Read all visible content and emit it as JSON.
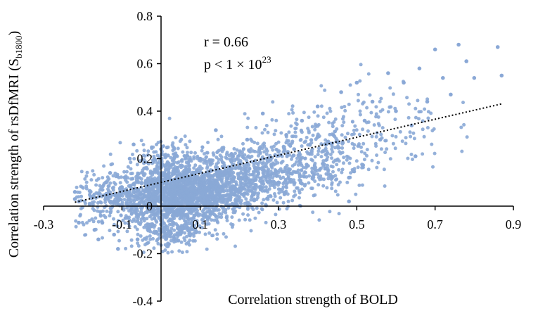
{
  "chart_data": {
    "type": "scatter",
    "title": "",
    "xlabel": "Correlation strength of BOLD",
    "ylabel_main": "Correlation strength of rsDfMRI (S",
    "ylabel_sub": "b1800",
    "ylabel_close": ")",
    "xlim": [
      -0.3,
      0.9
    ],
    "ylim": [
      -0.4,
      0.8
    ],
    "x_ticks": [
      -0.3,
      -0.1,
      0.1,
      0.3,
      0.5,
      0.7,
      0.9
    ],
    "x_tick_labels": [
      "-0.3",
      "-0.1",
      "0.1",
      "0.3",
      "0.5",
      "0.7",
      "0.9"
    ],
    "y_ticks": [
      -0.4,
      -0.2,
      0,
      0.2,
      0.4,
      0.6,
      0.8
    ],
    "y_tick_labels": [
      "-0.4",
      "-0.2",
      "0",
      "0.2",
      "0.4",
      "0.6",
      "0.8"
    ],
    "annotation_r": "r = 0.66",
    "annotation_p_main": "p < 1 × 10",
    "annotation_p_exp": "23",
    "point_color": "#8aa8d6",
    "trendline": {
      "slope": 0.38,
      "intercept": 0.1,
      "x_range": [
        -0.22,
        0.87
      ],
      "style": "dotted",
      "color": "#000000"
    },
    "representative_points": [
      [
        -0.22,
        0.06
      ],
      [
        -0.22,
        0.03
      ],
      [
        -0.21,
        0.02
      ],
      [
        -0.21,
        -0.07
      ],
      [
        -0.18,
        0.04
      ],
      [
        -0.17,
        -0.1
      ],
      [
        -0.16,
        -0.14
      ],
      [
        -0.15,
        -0.07
      ],
      [
        -0.14,
        0.1
      ],
      [
        -0.13,
        0.14
      ],
      [
        -0.12,
        -0.12
      ],
      [
        -0.12,
        0.02
      ],
      [
        -0.11,
        -0.18
      ],
      [
        -0.1,
        0.08
      ],
      [
        -0.09,
        -0.05
      ],
      [
        -0.08,
        0.2
      ],
      [
        -0.07,
        0.26
      ],
      [
        -0.06,
        -0.14
      ],
      [
        -0.04,
        0.16
      ],
      [
        -0.03,
        -0.1
      ],
      [
        0.0,
        0.24
      ],
      [
        0.02,
        -0.16
      ],
      [
        0.04,
        0.12
      ],
      [
        0.06,
        0.08
      ],
      [
        0.08,
        -0.08
      ],
      [
        0.1,
        0.2
      ],
      [
        0.12,
        0.04
      ],
      [
        0.14,
        0.32
      ],
      [
        0.16,
        0.14
      ],
      [
        0.18,
        0.22
      ],
      [
        0.2,
        0.06
      ],
      [
        0.22,
        0.28
      ],
      [
        0.24,
        0.16
      ],
      [
        0.26,
        0.39
      ],
      [
        0.28,
        0.2
      ],
      [
        0.3,
        0.1
      ],
      [
        0.32,
        0.3
      ],
      [
        0.34,
        0.24
      ],
      [
        0.36,
        0.36
      ],
      [
        0.38,
        0.22
      ],
      [
        0.4,
        0.42
      ],
      [
        0.42,
        0.16
      ],
      [
        0.44,
        0.3
      ],
      [
        0.46,
        0.48
      ],
      [
        0.48,
        0.12
      ],
      [
        0.48,
        0.02
      ],
      [
        0.5,
        0.52
      ],
      [
        0.52,
        0.36
      ],
      [
        0.54,
        0.44
      ],
      [
        0.56,
        0.28
      ],
      [
        0.58,
        0.56
      ],
      [
        0.6,
        0.4
      ],
      [
        0.62,
        0.52
      ],
      [
        0.64,
        0.34
      ],
      [
        0.65,
        0.21
      ],
      [
        0.66,
        0.58
      ],
      [
        0.68,
        0.44
      ],
      [
        0.7,
        0.66
      ],
      [
        0.72,
        0.54
      ],
      [
        0.74,
        0.47
      ],
      [
        0.76,
        0.68
      ],
      [
        0.78,
        0.61
      ],
      [
        0.8,
        0.54
      ],
      [
        0.86,
        0.67
      ],
      [
        0.87,
        0.55
      ]
    ],
    "clusters": [
      {
        "cx": 0.05,
        "cy": 0.05,
        "sx": 0.08,
        "sy": 0.06,
        "n": 1500
      },
      {
        "cx": 0.2,
        "cy": 0.12,
        "sx": 0.09,
        "sy": 0.07,
        "n": 700
      },
      {
        "cx": 0.38,
        "cy": 0.22,
        "sx": 0.08,
        "sy": 0.08,
        "n": 350
      },
      {
        "cx": 0.55,
        "cy": 0.35,
        "sx": 0.09,
        "sy": 0.1,
        "n": 130
      },
      {
        "cx": -0.1,
        "cy": 0.02,
        "sx": 0.07,
        "sy": 0.06,
        "n": 300
      },
      {
        "cx": 0.03,
        "cy": -0.1,
        "sx": 0.05,
        "sy": 0.04,
        "n": 220
      },
      {
        "cx": 0.02,
        "cy": 0.2,
        "sx": 0.04,
        "sy": 0.04,
        "n": 120
      }
    ]
  }
}
